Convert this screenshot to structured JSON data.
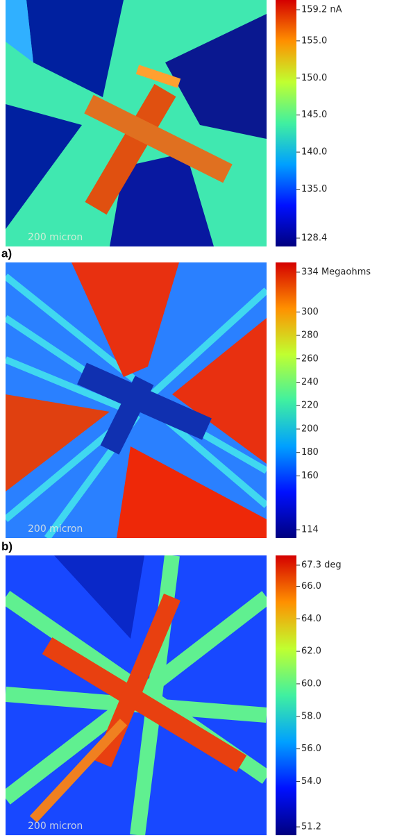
{
  "chart_data": [
    {
      "type": "colormap",
      "scale_bar": "200 micron",
      "label": "a)",
      "zlim": [
        128.4,
        159.2
      ],
      "zticks": [
        {
          "value": 159.2,
          "label": "159.2 nA"
        },
        {
          "value": 155,
          "label": "155.0"
        },
        {
          "value": 150,
          "label": "150.0"
        },
        {
          "value": 145,
          "label": "145.0"
        },
        {
          "value": 140,
          "label": "140.0"
        },
        {
          "value": 135,
          "label": "135.0"
        },
        {
          "value": 128.4,
          "label": "128.4"
        }
      ],
      "colors": [
        "#00007f",
        "#0010ff",
        "#00a0ff",
        "#40f0a0",
        "#c0ff30",
        "#ff9000",
        "#d40000"
      ]
    },
    {
      "type": "colormap",
      "scale_bar": "200 micron",
      "label": "b)",
      "zlim": [
        114,
        334
      ],
      "zticks": [
        {
          "value": 334,
          "label": "334 Megaohms"
        },
        300,
        280,
        260,
        240,
        220,
        200,
        180,
        160,
        114
      ],
      "colors": [
        "#00007f",
        "#0010ff",
        "#00a0ff",
        "#40f0a0",
        "#c0ff30",
        "#ff9000",
        "#d40000"
      ]
    },
    {
      "type": "colormap",
      "scale_bar": "200 micron",
      "zlim": [
        51.2,
        67.3
      ],
      "zticks": [
        {
          "value": 67.3,
          "label": "67.3 deg"
        },
        {
          "value": 66,
          "label": "66.0"
        },
        {
          "value": 64,
          "label": "64.0"
        },
        {
          "value": 62,
          "label": "62.0"
        },
        {
          "value": 60,
          "label": "60.0"
        },
        {
          "value": 58,
          "label": "58.0"
        },
        {
          "value": 56,
          "label": "56.0"
        },
        {
          "value": 54,
          "label": "54.0"
        },
        {
          "value": 51.2,
          "label": "51.2"
        }
      ],
      "colors": [
        "#00007f",
        "#0010ff",
        "#00a0ff",
        "#40f0a0",
        "#c0ff30",
        "#ff9000",
        "#d40000"
      ]
    }
  ]
}
